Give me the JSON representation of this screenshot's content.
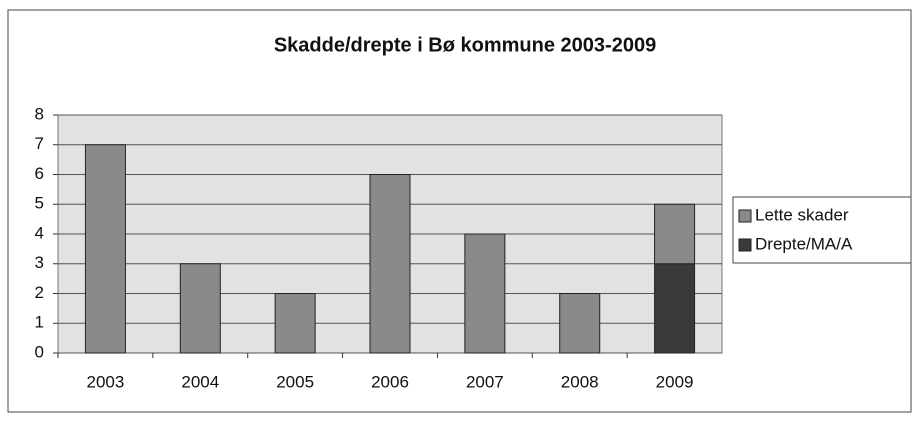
{
  "chart_data": {
    "type": "stacked_bar",
    "title": "Skadde/drepte i Bø kommune 2003-2009",
    "categories": [
      "2003",
      "2004",
      "2005",
      "2006",
      "2007",
      "2008",
      "2009"
    ],
    "series": [
      {
        "name": "Lette skader",
        "color": "#8a8a8a",
        "values": [
          7,
          3,
          2,
          6,
          4,
          2,
          2
        ]
      },
      {
        "name": "Drepte/MA/A",
        "color": "#3a3a3a",
        "values": [
          0,
          0,
          0,
          0,
          0,
          0,
          3
        ]
      }
    ],
    "ylim": [
      0,
      8
    ],
    "yticks": [
      0,
      1,
      2,
      3,
      4,
      5,
      6,
      7,
      8
    ],
    "grid": true,
    "legend": "right"
  }
}
